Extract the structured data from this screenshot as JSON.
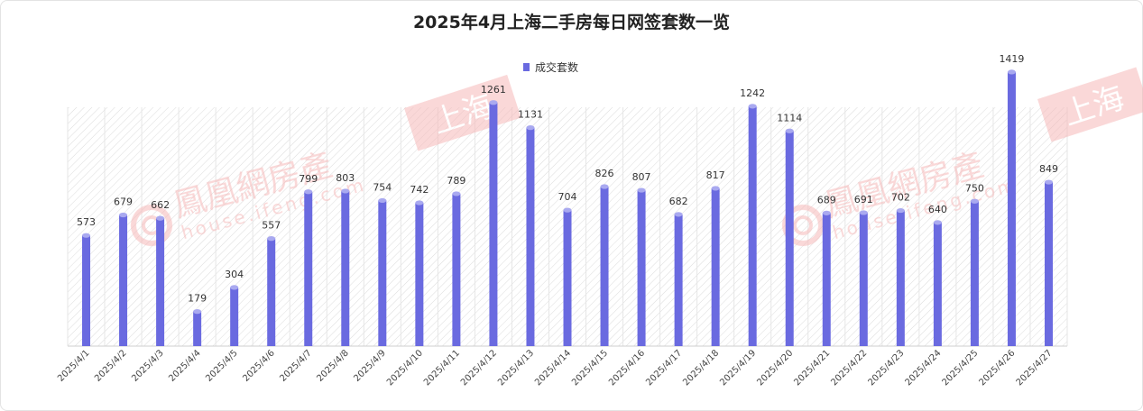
{
  "title": "2025年4月上海二手房每日网签套数一览",
  "legend": {
    "label": "成交套数"
  },
  "colors": {
    "bar": "#6a6ae0",
    "bar_top": "#a9a9f0",
    "label": "#333333",
    "hatch": "#dcdcdc",
    "watermark": "#f6b9b9"
  },
  "watermark": {
    "brand": "鳳凰網房產",
    "site": "house.ifeng.com",
    "seal": "上海"
  },
  "chart_data": {
    "type": "bar",
    "title": "2025年4月上海二手房每日网签套数一览",
    "xlabel": "",
    "ylabel": "",
    "ylim": [
      0,
      1500
    ],
    "grid": false,
    "legend_position": "top-center",
    "categories": [
      "2025/4/1",
      "2025/4/2",
      "2025/4/3",
      "2025/4/4",
      "2025/4/5",
      "2025/4/6",
      "2025/4/7",
      "2025/4/8",
      "2025/4/9",
      "2025/4/10",
      "2025/4/11",
      "2025/4/12",
      "2025/4/13",
      "2025/4/14",
      "2025/4/15",
      "2025/4/16",
      "2025/4/17",
      "2025/4/18",
      "2025/4/19",
      "2025/4/20",
      "2025/4/21",
      "2025/4/22",
      "2025/4/23",
      "2025/4/24",
      "2025/4/25",
      "2025/4/26",
      "2025/4/27"
    ],
    "series": [
      {
        "name": "成交套数",
        "values": [
          573,
          679,
          662,
          179,
          304,
          557,
          799,
          803,
          754,
          742,
          789,
          1261,
          1131,
          704,
          826,
          807,
          682,
          817,
          1242,
          1114,
          689,
          691,
          702,
          640,
          750,
          1419,
          849
        ]
      }
    ]
  }
}
